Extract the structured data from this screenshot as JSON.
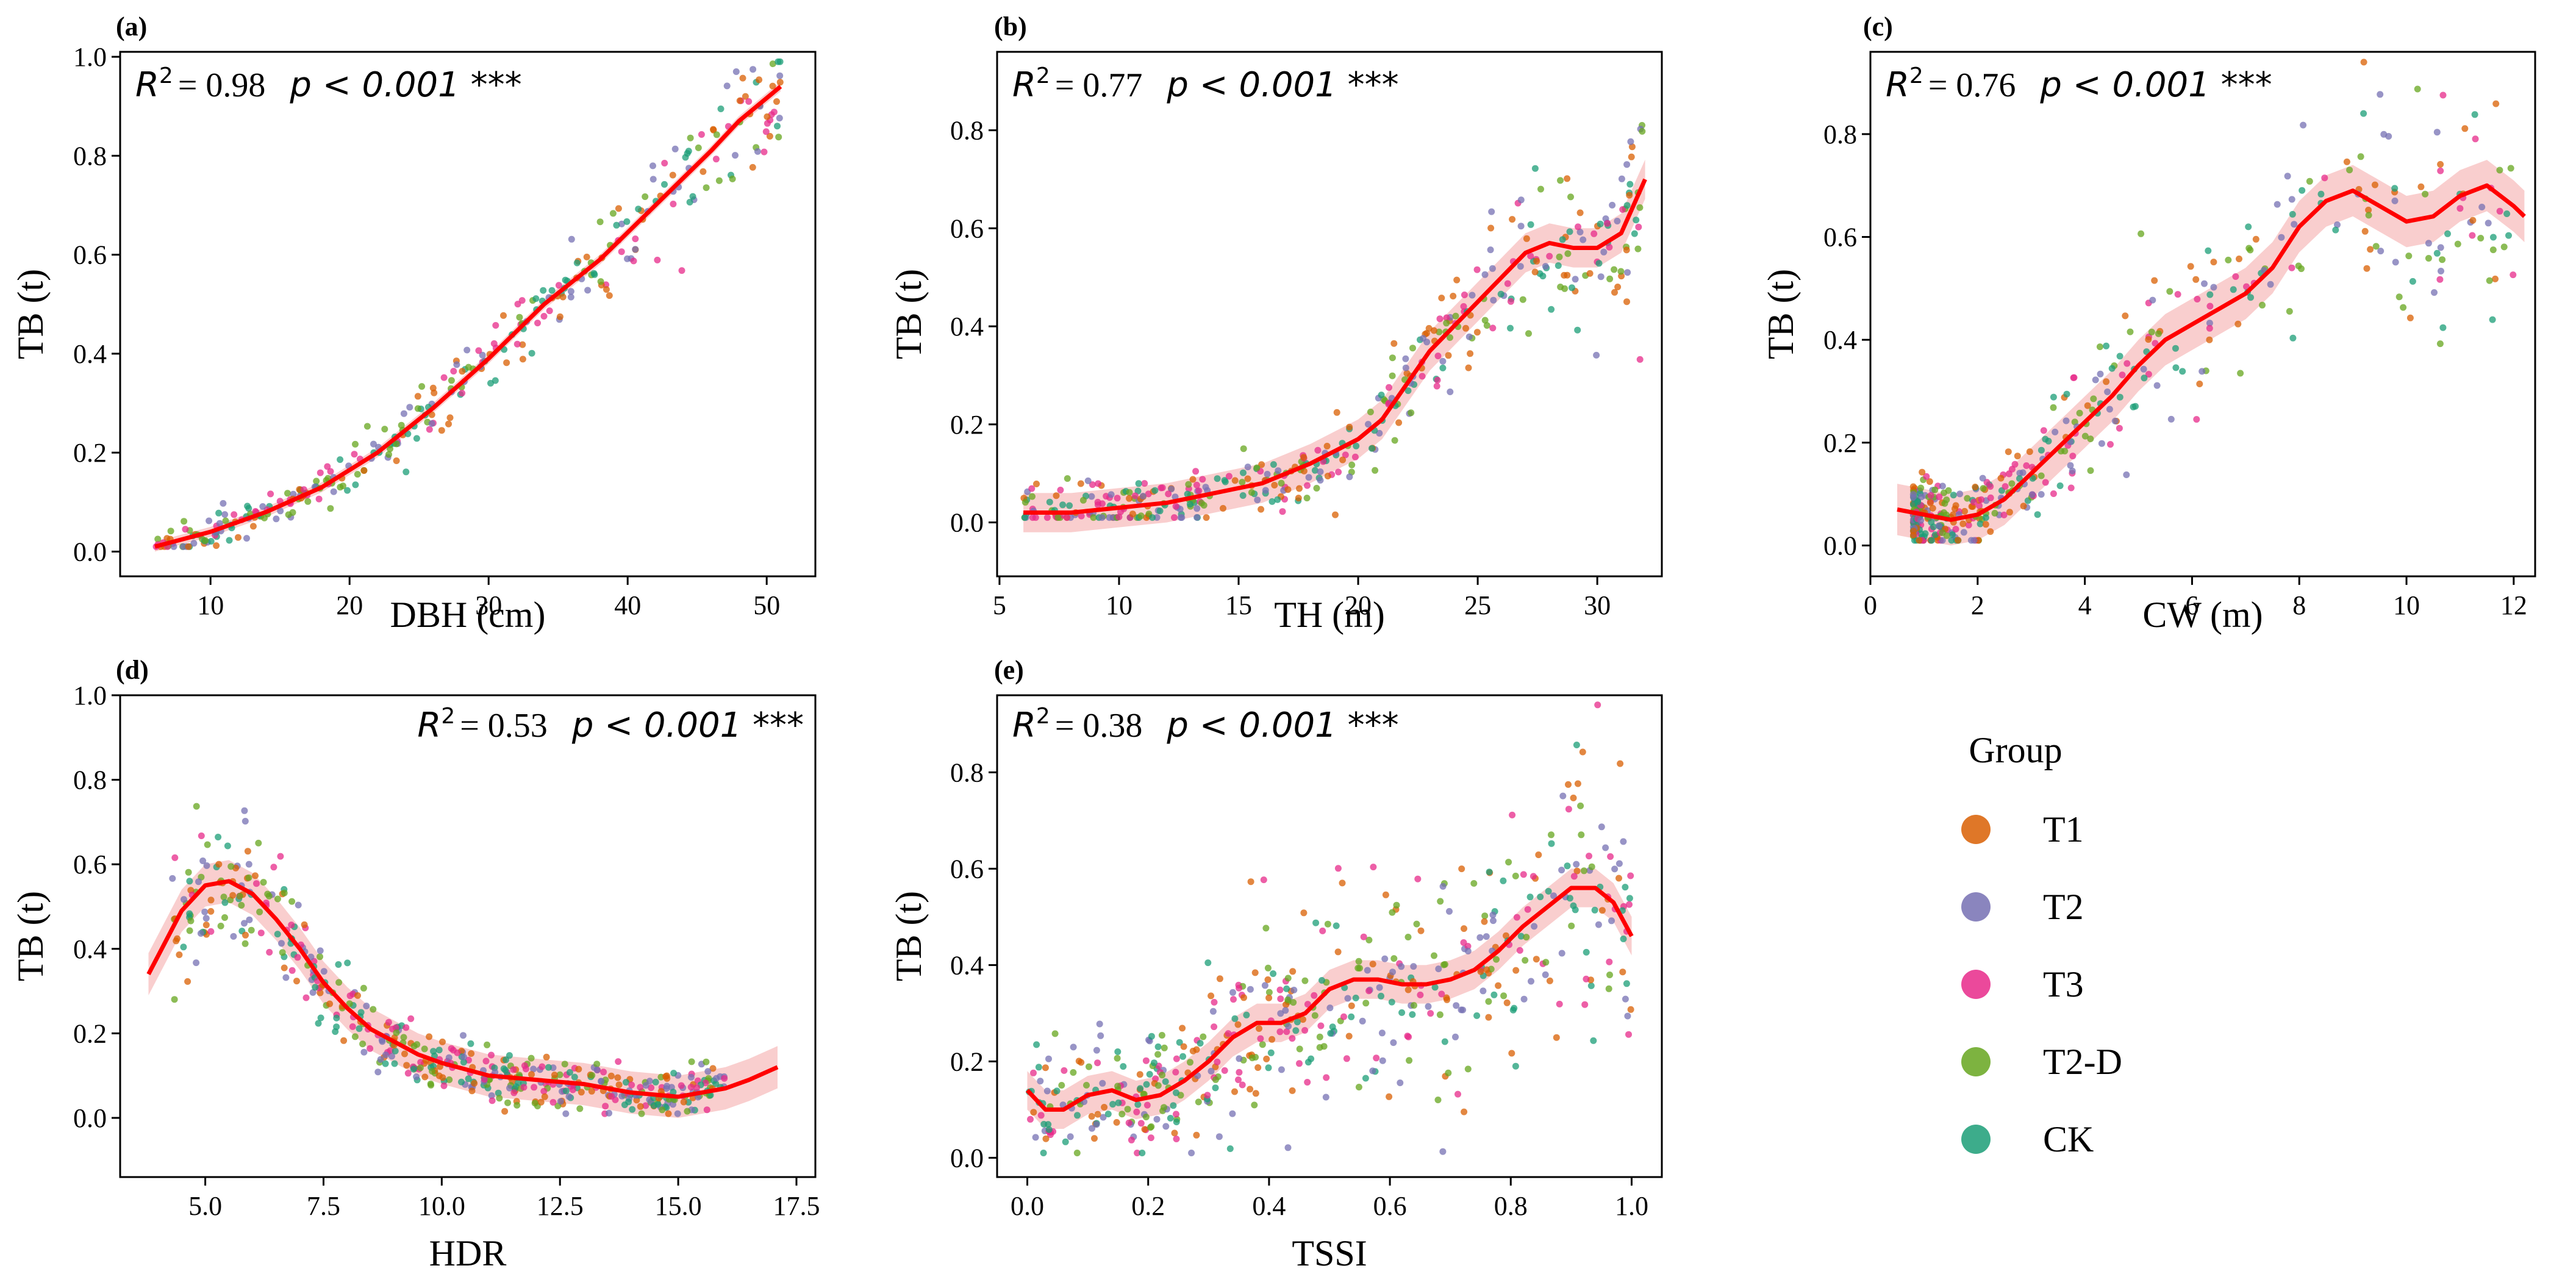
{
  "chart_data": [
    {
      "type": "scatter",
      "panel": "(a)",
      "xlabel": "DBH (cm)",
      "ylabel": "TB (t)",
      "xlim": [
        3.5,
        53.5
      ],
      "ylim": [
        -0.05,
        1.01
      ],
      "xticks": [
        10,
        20,
        30,
        40,
        50
      ],
      "yticks": [
        0.0,
        0.2,
        0.4,
        0.6,
        0.8,
        1.0
      ],
      "yticklabels": [
        "0.0",
        "0.2",
        "0.4",
        "0.6",
        "0.8",
        "1.0"
      ],
      "stats": {
        "r2": "R",
        "r2sup": "2",
        "r2value": "= 0.98",
        "pvalue": "p < 0.001 ***",
        "position": "top-left"
      },
      "fit": {
        "x": [
          6,
          10,
          14,
          18,
          22,
          26,
          30,
          34,
          38,
          42,
          46,
          48,
          51
        ],
        "y": [
          0.01,
          0.04,
          0.08,
          0.13,
          0.2,
          0.29,
          0.39,
          0.5,
          0.59,
          0.7,
          0.81,
          0.87,
          0.94
        ],
        "band": 0.01
      },
      "scatter_model": {
        "xrange": [
          6,
          51
        ],
        "n": 340,
        "noise": 0.03,
        "func": "fit",
        "tail_bias": 0.0
      }
    },
    {
      "type": "scatter",
      "panel": "(b)",
      "xlabel": "TH (m)",
      "ylabel": "TB (t)",
      "xlim": [
        4.9,
        32.7
      ],
      "ylim": [
        -0.11,
        0.96
      ],
      "xticks": [
        5,
        10,
        15,
        20,
        25,
        30
      ],
      "yticks": [
        0.0,
        0.2,
        0.4,
        0.6,
        0.8
      ],
      "yticklabels": [
        "0.0",
        "0.2",
        "0.4",
        "0.6",
        "0.8"
      ],
      "stats": {
        "r2": "R",
        "r2sup": "2",
        "r2value": "= 0.77",
        "pvalue": "p < 0.001 ***",
        "position": "top-left"
      },
      "fit": {
        "x": [
          6,
          8,
          10,
          12,
          14,
          16,
          18,
          20,
          21,
          22,
          23,
          24,
          25,
          26,
          27,
          28,
          29,
          30,
          31,
          32
        ],
        "y": [
          0.02,
          0.02,
          0.03,
          0.04,
          0.06,
          0.08,
          0.12,
          0.17,
          0.21,
          0.28,
          0.35,
          0.4,
          0.45,
          0.5,
          0.55,
          0.57,
          0.56,
          0.56,
          0.59,
          0.7
        ],
        "band": 0.04
      },
      "scatter_model": {
        "xrange": [
          6,
          32
        ],
        "n": 420,
        "noise": 0.06,
        "func": "fit",
        "tail_bias": 0.0
      }
    },
    {
      "type": "scatter",
      "panel": "(c)",
      "xlabel": "CW (m)",
      "ylabel": "TB (t)",
      "xlim": [
        0,
        12.4
      ],
      "ylim": [
        -0.06,
        0.96
      ],
      "xticks": [
        0,
        2,
        4,
        6,
        8,
        10,
        12
      ],
      "yticks": [
        0.0,
        0.2,
        0.4,
        0.6,
        0.8
      ],
      "yticklabels": [
        "0.0",
        "0.2",
        "0.4",
        "0.6",
        "0.8"
      ],
      "stats": {
        "r2": "R",
        "r2sup": "2",
        "r2value": "= 0.76",
        "pvalue": "p < 0.001 ***",
        "position": "top-left"
      },
      "fit": {
        "x": [
          0.5,
          1.0,
          1.5,
          2.0,
          2.5,
          3.0,
          3.5,
          4.0,
          4.5,
          5.0,
          5.5,
          6.0,
          6.5,
          7.0,
          7.5,
          8.0,
          8.5,
          9.0,
          9.5,
          10.0,
          10.5,
          11.0,
          11.5,
          12.0,
          12.2
        ],
        "y": [
          0.07,
          0.06,
          0.05,
          0.06,
          0.09,
          0.14,
          0.19,
          0.24,
          0.29,
          0.35,
          0.4,
          0.43,
          0.46,
          0.49,
          0.54,
          0.62,
          0.67,
          0.69,
          0.66,
          0.63,
          0.64,
          0.68,
          0.7,
          0.66,
          0.64
        ],
        "band": 0.05
      },
      "scatter_model": {
        "xrange": [
          0.8,
          12.0
        ],
        "n": 460,
        "noise": 0.07,
        "func": "fit",
        "tail_bias": 2.6
      }
    },
    {
      "type": "scatter",
      "panel": "(d)",
      "xlabel": "HDR",
      "ylabel": "TB (t)",
      "xlim": [
        3.2,
        17.9
      ],
      "ylim": [
        -0.14,
        1.0
      ],
      "xticks": [
        5.0,
        7.5,
        10.0,
        12.5,
        15.0,
        17.5
      ],
      "xticklabels": [
        "5.0",
        "7.5",
        "10.0",
        "12.5",
        "15.0",
        "17.5"
      ],
      "yticks": [
        0.0,
        0.2,
        0.4,
        0.6,
        0.8,
        1.0
      ],
      "yticklabels": [
        "0.0",
        "0.2",
        "0.4",
        "0.6",
        "0.8",
        "1.0"
      ],
      "stats": {
        "r2": "R",
        "r2sup": "2",
        "r2value": "= 0.53",
        "pvalue": "p < 0.001 ***",
        "position": "top-right"
      },
      "fit": {
        "x": [
          3.8,
          4.5,
          5.0,
          5.5,
          6.0,
          6.5,
          7.0,
          7.5,
          8.0,
          8.5,
          9.0,
          9.5,
          10.0,
          11.0,
          12.0,
          13.0,
          14.0,
          15.0,
          15.5,
          16.0,
          16.5,
          17.1
        ],
        "y": [
          0.34,
          0.49,
          0.55,
          0.56,
          0.53,
          0.47,
          0.4,
          0.32,
          0.26,
          0.21,
          0.18,
          0.15,
          0.13,
          0.1,
          0.09,
          0.08,
          0.06,
          0.05,
          0.06,
          0.07,
          0.09,
          0.12
        ],
        "band": 0.05
      },
      "scatter_model": {
        "xrange": [
          4.3,
          16.0
        ],
        "n": 520,
        "noise": 0.06,
        "func": "fit",
        "tail_bias": 0.0
      }
    },
    {
      "type": "scatter",
      "panel": "(e)",
      "xlabel": "TSSI",
      "ylabel": "TB (t)",
      "xlim": [
        -0.05,
        1.05
      ],
      "ylim": [
        -0.04,
        0.96
      ],
      "xticks": [
        0.0,
        0.2,
        0.4,
        0.6,
        0.8,
        1.0
      ],
      "xticklabels": [
        "0.0",
        "0.2",
        "0.4",
        "0.6",
        "0.8",
        "1.0"
      ],
      "yticks": [
        0.0,
        0.2,
        0.4,
        0.6,
        0.8
      ],
      "yticklabels": [
        "0.0",
        "0.2",
        "0.4",
        "0.6",
        "0.8"
      ],
      "stats": {
        "r2": "R",
        "r2sup": "2",
        "r2value": "= 0.38",
        "pvalue": "p < 0.001 ***",
        "position": "top-left"
      },
      "fit": {
        "x": [
          0.0,
          0.03,
          0.06,
          0.1,
          0.14,
          0.18,
          0.22,
          0.26,
          0.3,
          0.34,
          0.38,
          0.42,
          0.46,
          0.5,
          0.54,
          0.58,
          0.62,
          0.66,
          0.7,
          0.74,
          0.78,
          0.82,
          0.86,
          0.9,
          0.94,
          0.97,
          1.0
        ],
        "y": [
          0.14,
          0.1,
          0.1,
          0.13,
          0.14,
          0.12,
          0.13,
          0.16,
          0.2,
          0.25,
          0.28,
          0.28,
          0.3,
          0.35,
          0.37,
          0.37,
          0.36,
          0.36,
          0.37,
          0.39,
          0.43,
          0.48,
          0.52,
          0.56,
          0.56,
          0.53,
          0.46
        ],
        "band": 0.04
      },
      "scatter_model": {
        "xrange": [
          0.0,
          1.0
        ],
        "n": 520,
        "noise": 0.1,
        "func": "fit",
        "tail_bias": 0.0
      }
    }
  ],
  "legend": {
    "title": "Group",
    "entries": [
      {
        "label": "T1",
        "color": "#d95f02"
      },
      {
        "label": "T2",
        "color": "#7570b3"
      },
      {
        "label": "T3",
        "color": "#e7298a"
      },
      {
        "label": "T2-D",
        "color": "#66a61e"
      },
      {
        "label": "CK",
        "color": "#1b9e77"
      }
    ]
  },
  "colors": {
    "fit_line": "#ff0000",
    "band": "#f4a6a6"
  }
}
